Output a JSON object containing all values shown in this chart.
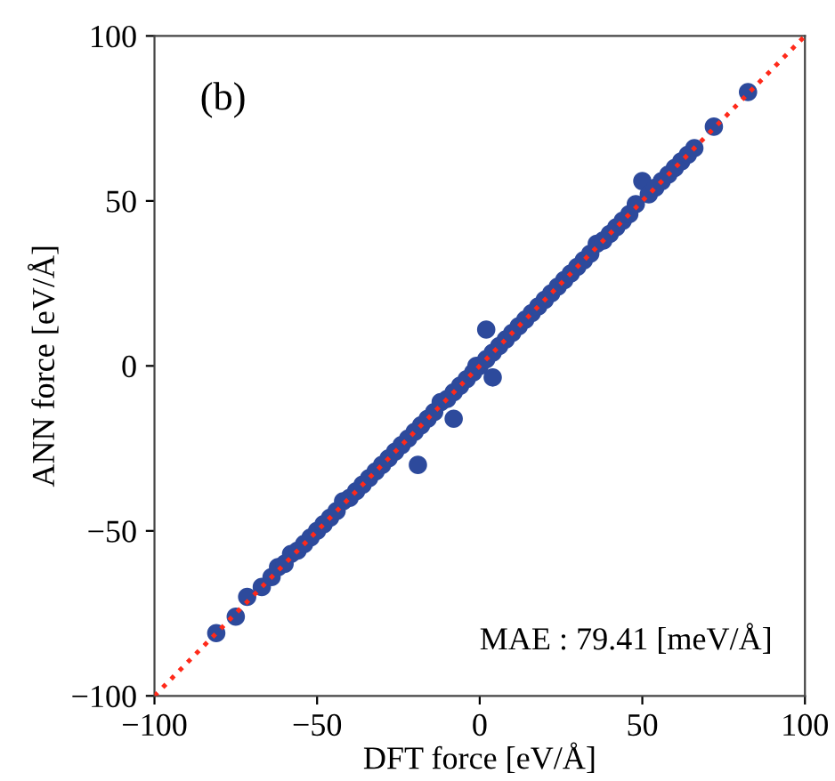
{
  "chart_data": {
    "type": "scatter",
    "xlabel": "DFT force [eV/Å]",
    "ylabel": "ANN force [eV/Å]",
    "xlim": [
      -100,
      100
    ],
    "ylim": [
      -100,
      100
    ],
    "xticks": [
      -100,
      -50,
      0,
      50,
      100
    ],
    "yticks": [
      -100,
      -50,
      0,
      50,
      100
    ],
    "grid": false,
    "legend": false,
    "annotations": [
      "(b)",
      "MAE : 79.41 [meV/Å]"
    ],
    "series": [
      {
        "marker": "circle",
        "color": "#2d4a9c",
        "x": [
          -81,
          -75,
          -71.5,
          -67,
          -64,
          -62,
          -60,
          -58,
          -56,
          -54,
          -52,
          -50,
          -48,
          -46,
          -44,
          -42,
          -40,
          -38,
          -36,
          -34,
          -32,
          -30,
          -28,
          -26,
          -24,
          -22,
          -20,
          -18,
          -16,
          -19,
          -14,
          -12,
          -10,
          -8,
          -8,
          -6,
          -4,
          -2,
          0,
          -1,
          2,
          4,
          2,
          4,
          6,
          8,
          10,
          12,
          14,
          16,
          18,
          20,
          22,
          24,
          26,
          28,
          30,
          32,
          34,
          36,
          38,
          40,
          42,
          44,
          46,
          48,
          50,
          52,
          54,
          56,
          58,
          60,
          62,
          64,
          66,
          72,
          82.5
        ],
        "values": [
          -81,
          -76,
          -70,
          -67,
          -64,
          -61,
          -60,
          -57,
          -56,
          -54,
          -52,
          -50,
          -48,
          -46,
          -44,
          -41,
          -40,
          -38,
          -36,
          -34,
          -32,
          -30,
          -28,
          -26,
          -24,
          -22,
          -20,
          -18,
          -16,
          -30,
          -14,
          -11,
          -10,
          -16,
          -8,
          -6,
          -4,
          -2,
          0,
          0,
          2,
          -3.5,
          11,
          4,
          6,
          8,
          10,
          12,
          14,
          16,
          18,
          20,
          22,
          24,
          26,
          28,
          30,
          32,
          34,
          37,
          38,
          40,
          42,
          44,
          46,
          49,
          56,
          52,
          54,
          56,
          58,
          60,
          62,
          64,
          66,
          72.5,
          83
        ]
      },
      {
        "type": "line",
        "color": "#ff2a1a",
        "line_style": "dotted",
        "x": [
          -100,
          100
        ],
        "values": [
          -100,
          100
        ]
      }
    ]
  }
}
